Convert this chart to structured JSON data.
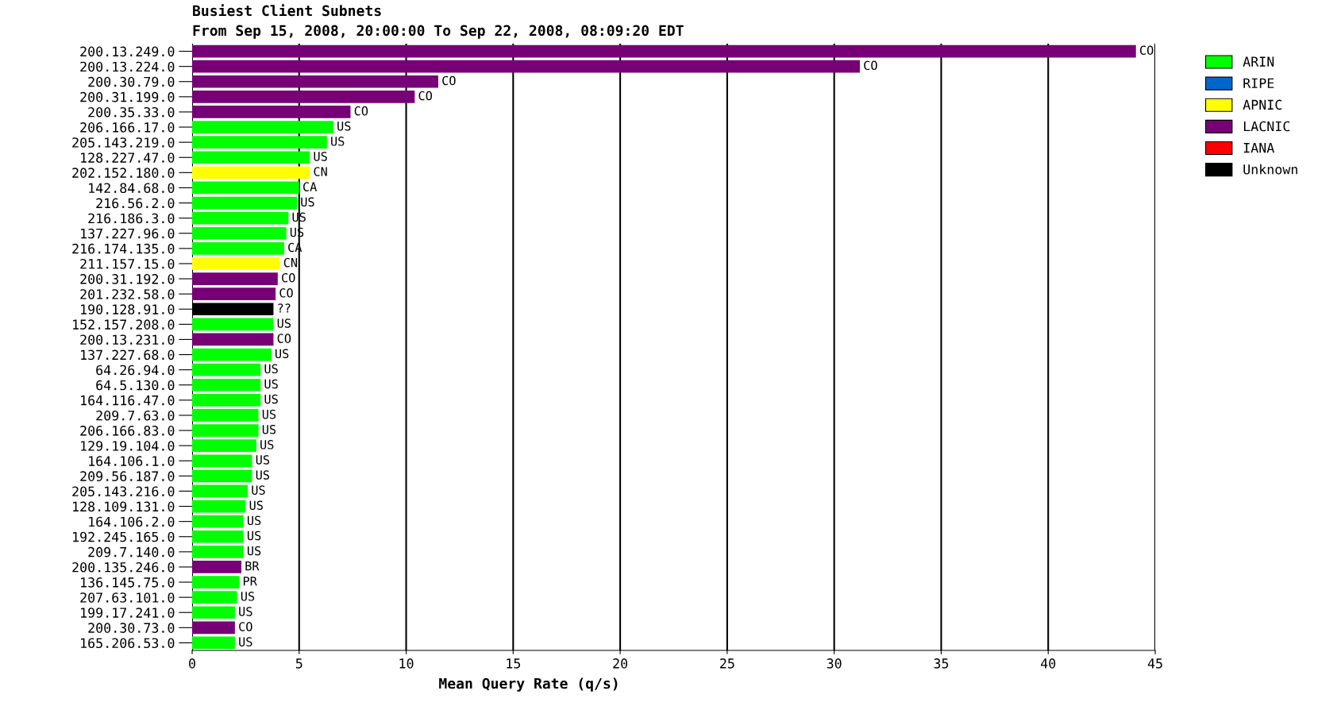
{
  "chart_data": {
    "type": "bar",
    "orientation": "horizontal",
    "title": "Busiest Client Subnets",
    "subtitle": "From Sep 15, 2008, 20:00:00 To Sep 22, 2008, 08:09:20 EDT",
    "xlabel": "Mean Query Rate (q/s)",
    "categories": [
      "200.13.249.0",
      "200.13.224.0",
      "200.30.79.0",
      "200.31.199.0",
      "200.35.33.0",
      "206.166.17.0",
      "205.143.219.0",
      "128.227.47.0",
      "202.152.180.0",
      "142.84.68.0",
      "216.56.2.0",
      "216.186.3.0",
      "137.227.96.0",
      "216.174.135.0",
      "211.157.15.0",
      "200.31.192.0",
      "201.232.58.0",
      "190.128.91.0",
      "152.157.208.0",
      "200.13.231.0",
      "137.227.68.0",
      "64.26.94.0",
      "64.5.130.0",
      "164.116.47.0",
      "209.7.63.0",
      "206.166.83.0",
      "129.19.104.0",
      "164.106.1.0",
      "209.56.187.0",
      "205.143.216.0",
      "128.109.131.0",
      "164.106.2.0",
      "192.245.165.0",
      "209.7.140.0",
      "200.135.246.0",
      "136.145.75.0",
      "207.63.101.0",
      "199.17.241.0",
      "200.30.73.0",
      "165.206.53.0"
    ],
    "series": [
      {
        "name": "ARIN",
        "color": "#00ff00",
        "values": [
          null,
          null,
          null,
          null,
          null,
          6.6,
          6.3,
          5.5,
          null,
          5.0,
          4.9,
          4.5,
          4.4,
          4.3,
          null,
          null,
          null,
          null,
          3.8,
          null,
          3.7,
          3.2,
          3.2,
          3.2,
          3.1,
          3.1,
          3.0,
          2.8,
          2.8,
          2.6,
          2.5,
          2.4,
          2.4,
          2.4,
          null,
          2.2,
          2.1,
          2.0,
          null,
          2.0
        ],
        "value_labels": [
          null,
          null,
          null,
          null,
          null,
          "US",
          "US",
          "US",
          null,
          "CA",
          "US",
          "US",
          "US",
          "CA",
          null,
          null,
          null,
          null,
          "US",
          null,
          "US",
          "US",
          "US",
          "US",
          "US",
          "US",
          "US",
          "US",
          "US",
          "US",
          "US",
          "US",
          "US",
          "US",
          null,
          "PR",
          "US",
          "US",
          null,
          "US"
        ]
      },
      {
        "name": "RIPE",
        "color": "#0066cc",
        "values": [
          null,
          null,
          null,
          null,
          null,
          null,
          null,
          null,
          null,
          null,
          null,
          null,
          null,
          null,
          null,
          null,
          null,
          null,
          null,
          null,
          null,
          null,
          null,
          null,
          null,
          null,
          null,
          null,
          null,
          null,
          null,
          null,
          null,
          null,
          null,
          null,
          null,
          null,
          null,
          null
        ]
      },
      {
        "name": "APNIC",
        "color": "#ffff00",
        "values": [
          null,
          null,
          null,
          null,
          null,
          null,
          null,
          null,
          5.5,
          null,
          null,
          null,
          null,
          null,
          4.1,
          null,
          null,
          null,
          null,
          null,
          null,
          null,
          null,
          null,
          null,
          null,
          null,
          null,
          null,
          null,
          null,
          null,
          null,
          null,
          null,
          null,
          null,
          null,
          null,
          null
        ],
        "value_labels": [
          null,
          null,
          null,
          null,
          null,
          null,
          null,
          null,
          "CN",
          null,
          null,
          null,
          null,
          null,
          "CN",
          null,
          null,
          null,
          null,
          null,
          null,
          null,
          null,
          null,
          null,
          null,
          null,
          null,
          null,
          null,
          null,
          null,
          null,
          null,
          null,
          null,
          null,
          null,
          null,
          null
        ]
      },
      {
        "name": "LACNIC",
        "color": "#770077",
        "values": [
          44.1,
          31.2,
          11.5,
          10.4,
          7.4,
          null,
          null,
          null,
          null,
          null,
          null,
          null,
          null,
          null,
          null,
          4.0,
          3.9,
          null,
          null,
          3.8,
          null,
          null,
          null,
          null,
          null,
          null,
          null,
          null,
          null,
          null,
          null,
          null,
          null,
          null,
          2.3,
          null,
          null,
          null,
          2.0,
          null
        ],
        "value_labels": [
          "CO",
          "CO",
          "CO",
          "CO",
          "CO",
          null,
          null,
          null,
          null,
          null,
          null,
          null,
          null,
          null,
          null,
          "CO",
          "CO",
          null,
          null,
          "CO",
          null,
          null,
          null,
          null,
          null,
          null,
          null,
          null,
          null,
          null,
          null,
          null,
          null,
          null,
          "BR",
          null,
          null,
          null,
          "CO",
          null
        ]
      },
      {
        "name": "IANA",
        "color": "#ff0000",
        "values": [
          null,
          null,
          null,
          null,
          null,
          null,
          null,
          null,
          null,
          null,
          null,
          null,
          null,
          null,
          null,
          null,
          null,
          null,
          null,
          null,
          null,
          null,
          null,
          null,
          null,
          null,
          null,
          null,
          null,
          null,
          null,
          null,
          null,
          null,
          null,
          null,
          null,
          null,
          null,
          null
        ]
      },
      {
        "name": "Unknown",
        "color": "#000000",
        "values": [
          null,
          null,
          null,
          null,
          null,
          null,
          null,
          null,
          null,
          null,
          null,
          null,
          null,
          null,
          null,
          null,
          null,
          3.8,
          null,
          null,
          null,
          null,
          null,
          null,
          null,
          null,
          null,
          null,
          null,
          null,
          null,
          null,
          null,
          null,
          null,
          null,
          null,
          null,
          null,
          null
        ],
        "value_labels": [
          null,
          null,
          null,
          null,
          null,
          null,
          null,
          null,
          null,
          null,
          null,
          null,
          null,
          null,
          null,
          null,
          null,
          "??",
          null,
          null,
          null,
          null,
          null,
          null,
          null,
          null,
          null,
          null,
          null,
          null,
          null,
          null,
          null,
          null,
          null,
          null,
          null,
          null,
          null,
          null
        ]
      }
    ],
    "xlim": [
      0,
      45
    ],
    "xticks": [
      0,
      5,
      10,
      15,
      20,
      25,
      30,
      35,
      40,
      45
    ],
    "grid": "x",
    "legend": "top right"
  }
}
